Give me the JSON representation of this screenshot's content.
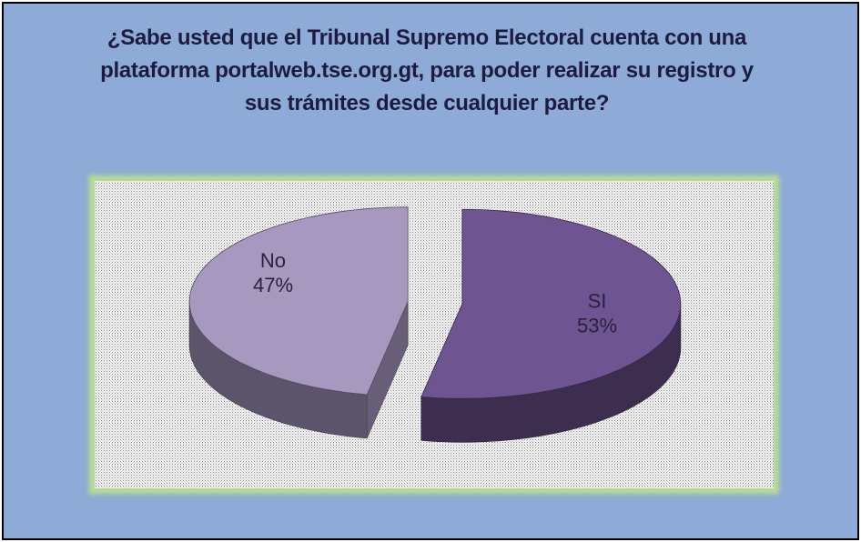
{
  "chart_data": {
    "type": "pie3d",
    "title": "¿Sabe usted que el Tribunal Supremo Electoral cuenta con una plataforma portalweb.tse.org.gt, para poder realizar su registro y sus trámites desde cualquier parte?",
    "categories": [
      "SI",
      "No"
    ],
    "values": [
      53,
      47
    ],
    "value_labels": [
      "53%",
      "47%"
    ],
    "colors": [
      "#6e5490",
      "#a798c0"
    ]
  }
}
